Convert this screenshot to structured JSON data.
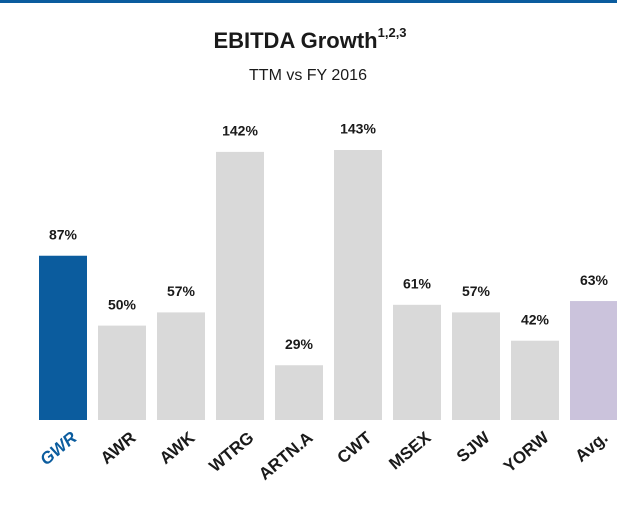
{
  "chart_data": {
    "type": "bar",
    "title": "EBITDA Growth",
    "title_note": "1,2,3",
    "subtitle": "TTM vs FY 2016",
    "categories": [
      "GWR",
      "AWR",
      "AWK",
      "WTRG",
      "ARTN.A",
      "CWT",
      "MSEX",
      "SJW",
      "YORW",
      "Avg."
    ],
    "values": [
      87,
      50,
      57,
      142,
      29,
      143,
      61,
      57,
      42,
      63
    ],
    "value_labels": [
      "87%",
      "50%",
      "57%",
      "142%",
      "29%",
      "143%",
      "61%",
      "57%",
      "42%",
      "63%"
    ],
    "colors": [
      "#0b5c9e",
      "#d9d9d9",
      "#d9d9d9",
      "#d9d9d9",
      "#d9d9d9",
      "#d9d9d9",
      "#d9d9d9",
      "#d9d9d9",
      "#d9d9d9",
      "#cbc3dc"
    ]
  }
}
